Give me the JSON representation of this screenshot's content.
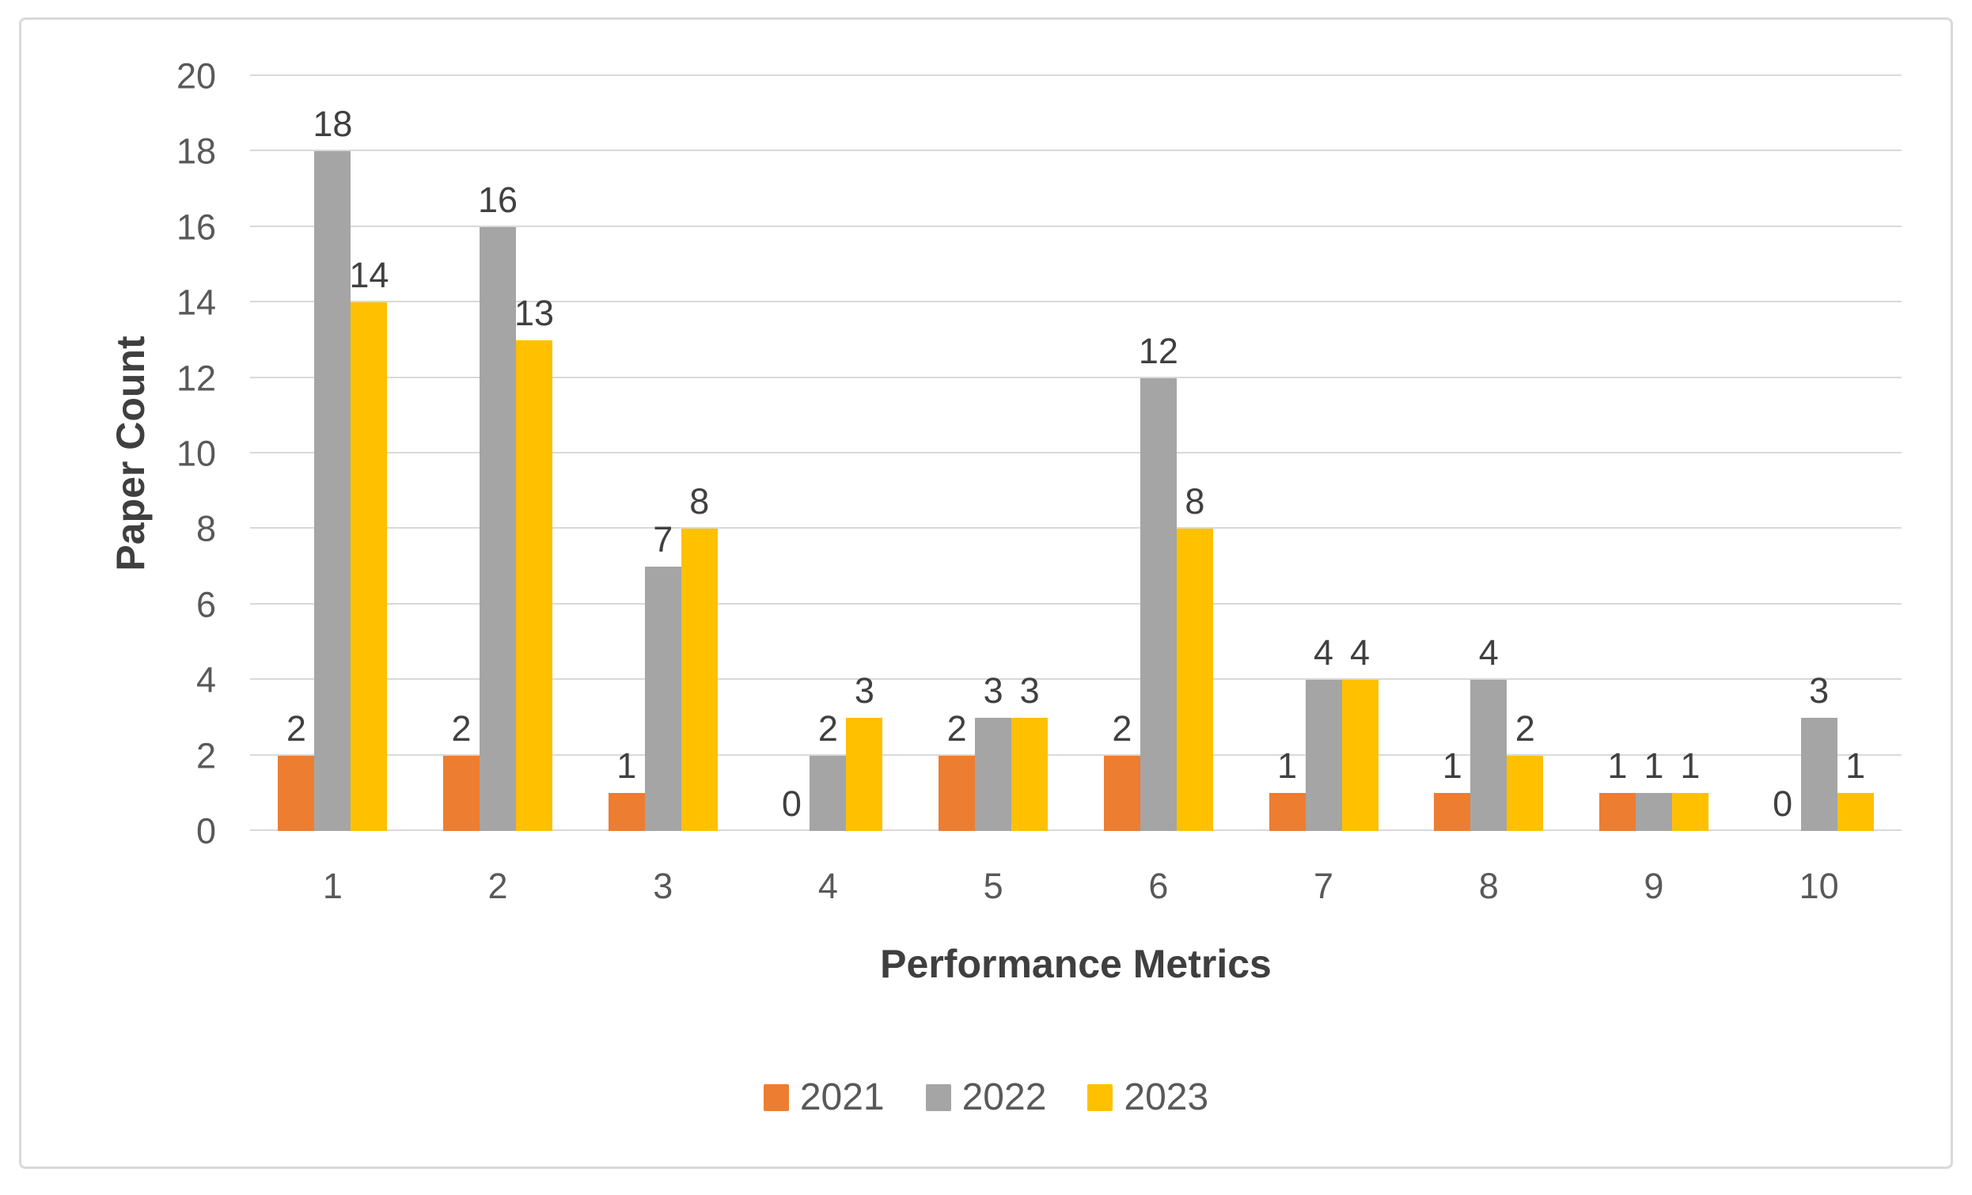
{
  "chart_data": {
    "type": "bar",
    "title": "",
    "xlabel": "Performance Metrics",
    "ylabel": "Paper Count",
    "categories": [
      "1",
      "2",
      "3",
      "4",
      "5",
      "6",
      "7",
      "8",
      "9",
      "10"
    ],
    "series": [
      {
        "name": "2021",
        "color": "#ED7D31",
        "values": [
          2,
          2,
          1,
          0,
          2,
          2,
          1,
          1,
          1,
          0
        ]
      },
      {
        "name": "2022",
        "color": "#A5A5A5",
        "values": [
          18,
          16,
          7,
          2,
          3,
          12,
          4,
          4,
          1,
          3
        ]
      },
      {
        "name": "2023",
        "color": "#FFC000",
        "values": [
          14,
          13,
          8,
          3,
          3,
          8,
          4,
          2,
          1,
          1
        ]
      }
    ],
    "ylim": [
      0,
      20
    ],
    "y_ticks": [
      "0",
      "2",
      "4",
      "6",
      "8",
      "10",
      "12",
      "14",
      "16",
      "18",
      "20"
    ],
    "grid": true,
    "data_labels": true,
    "legend_position": "bottom"
  },
  "style": {
    "frame_border_color": "#d9d9d9",
    "gridline_color": "#d9d9d9",
    "axis_text_color": "#595959",
    "data_label_color": "#404040",
    "title_text_color": "#3f3f3f",
    "background": "#ffffff"
  }
}
